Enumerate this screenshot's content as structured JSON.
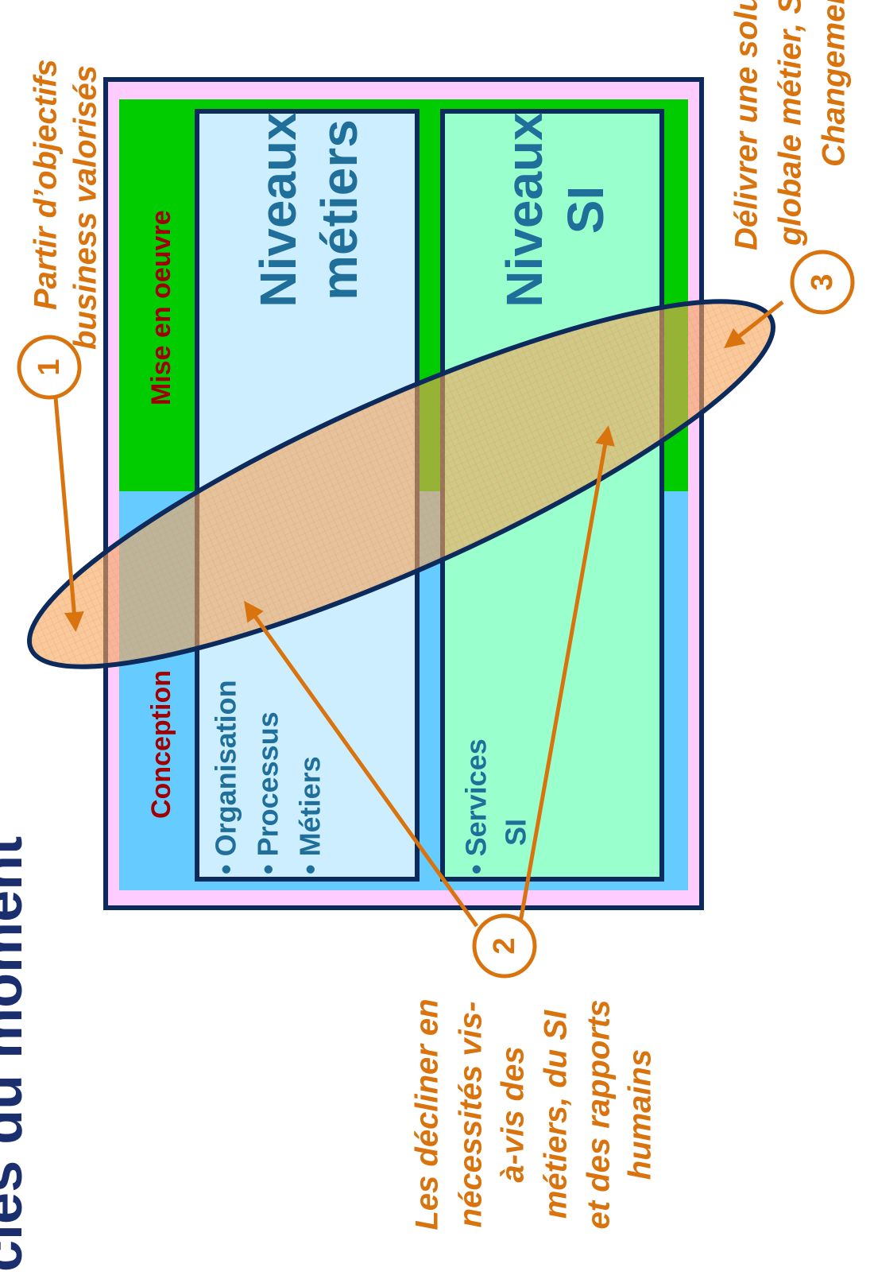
{
  "title": "cles du moment",
  "zones": {
    "conception": "Conception",
    "mise_en_oeuvre": "Mise en oeuvre"
  },
  "boxes": [
    {
      "bullets": [
        "• Organisation",
        "• Processus",
        "• Métiers"
      ],
      "heading": [
        "Niveaux",
        "métiers"
      ]
    },
    {
      "bullets": [
        "• Services",
        "SI"
      ],
      "heading": [
        "Niveaux",
        "SI"
      ]
    }
  ],
  "steps": [
    {
      "number": "1",
      "text": [
        "Partir d’objectifs",
        "business valorisés"
      ]
    },
    {
      "number": "2",
      "text": [
        "Les décliner en",
        "nécessités vis-",
        "à-vis des",
        "métiers, du SI",
        "et des rapports",
        "humains"
      ]
    },
    {
      "number": "3",
      "text": [
        "Délivrer une solution",
        "globale métier, SI,",
        "Changement"
      ]
    }
  ]
}
